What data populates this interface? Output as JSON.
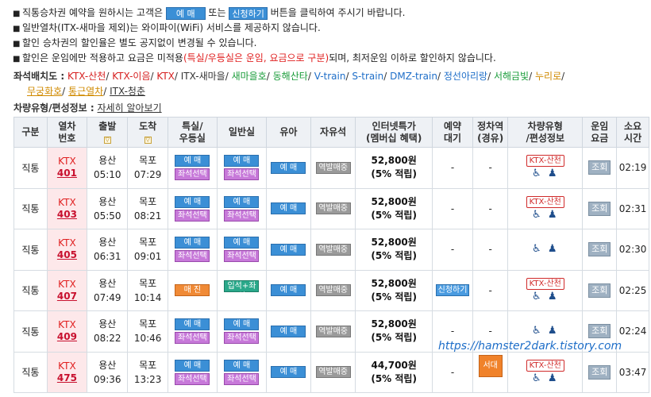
{
  "notices": [
    {
      "pre": "직통승차권 예약을 원하시는 고객은 ",
      "btn1": "예 매",
      "mid": " 또는 ",
      "btn2": "신청하기",
      "post": " 버튼을 클릭하여 주시기 바랍니다."
    },
    {
      "text": "일반열차(ITX-새마을 제외)는 와이파이(WiFi) 서비스를 제공하지 않습니다."
    },
    {
      "text": "할인 승차권의 할인율은 별도 공지없이 변경될 수 있습니다."
    },
    {
      "pre": "할인은 운임에만 적용하고 요금은 미적용",
      "red": "(특실/우등실은 운임, 요금으로 구분)",
      "post": "되며, 최저운임 이하로 할인하지 않습니다."
    }
  ],
  "seatmap": {
    "label": "좌석배치도 :",
    "items": [
      {
        "text": "KTX-산천",
        "color": "#d62020"
      },
      {
        "text": "KTX-이음",
        "color": "#d62020"
      },
      {
        "text": "KTX",
        "color": "#d62020"
      },
      {
        "text": "ITX-새마을",
        "color": "#333333"
      },
      {
        "text": "새마을호",
        "color": "#1a9c3a"
      },
      {
        "text": "동해산타",
        "color": "#1a9c3a"
      },
      {
        "text": "V-train",
        "color": "#1e6ec8"
      },
      {
        "text": "S-train",
        "color": "#1e6ec8"
      },
      {
        "text": "DMZ-train",
        "color": "#1e6ec8"
      },
      {
        "text": "정선아리랑",
        "color": "#1e6ec8"
      },
      {
        "text": "서해금빛",
        "color": "#1a9c3a"
      },
      {
        "text": "누리로",
        "color": "#d08a00"
      }
    ],
    "items2": [
      {
        "text": "무궁화호",
        "color": "#d08a00"
      },
      {
        "text": "통근열차",
        "color": "#d08a00"
      },
      {
        "text": "ITX-청춘",
        "color": "#333333"
      }
    ]
  },
  "vehicle": {
    "label": "차량유형/편성정보 :",
    "link": "자세히 알아보기"
  },
  "headers": {
    "type": "구분",
    "train": [
      "열차",
      "번호"
    ],
    "depart": "출발",
    "arrive": "도착",
    "special": [
      "특실/",
      "우등실"
    ],
    "general": "일반실",
    "child": "유아",
    "standing": "자유석",
    "fare": [
      "인터넷특가",
      "(멤버십 혜택)"
    ],
    "wait": [
      "예약",
      "대기"
    ],
    "stop": [
      "정차역",
      "(경유)"
    ],
    "vtype": [
      "차량유형",
      "/편성정보"
    ],
    "price": [
      "운임",
      "요금"
    ],
    "dur": [
      "소요",
      "시간"
    ],
    "sort_icon": "▽"
  },
  "labels": {
    "reserve": "예 매",
    "seatsel": "좌석선택",
    "soldout": "매 진",
    "standseat": "입석+좌석",
    "station_sale": "역발매중",
    "apply": "신청하기",
    "lookup": "조회",
    "sancheon": "KTX-산천",
    "dash": "-",
    "stopover": "서대전"
  },
  "rows": [
    {
      "type": "직통",
      "ktx": "KTX",
      "no": "401",
      "from": "용산",
      "dep": "05:10",
      "to": "목포",
      "arr": "07:29",
      "special": "reserve",
      "general": "reserve",
      "fare": "52,800원",
      "pts": "(5% 적립)",
      "wait": "dash",
      "stop": "dash",
      "sancheon": true,
      "dur": "02:19"
    },
    {
      "type": "직통",
      "ktx": "KTX",
      "no": "403",
      "from": "용산",
      "dep": "05:50",
      "to": "목포",
      "arr": "08:21",
      "special": "reserve",
      "general": "reserve",
      "fare": "52,800원",
      "pts": "(5% 적립)",
      "wait": "dash",
      "stop": "dash",
      "sancheon": true,
      "dur": "02:31"
    },
    {
      "type": "직통",
      "ktx": "KTX",
      "no": "405",
      "from": "용산",
      "dep": "06:31",
      "to": "목포",
      "arr": "09:01",
      "special": "reserve",
      "general": "reserve",
      "fare": "52,800원",
      "pts": "(5% 적립)",
      "wait": "dash",
      "stop": "dash",
      "sancheon": false,
      "dur": "02:30"
    },
    {
      "type": "직통",
      "ktx": "KTX",
      "no": "407",
      "from": "용산",
      "dep": "07:49",
      "to": "목포",
      "arr": "10:14",
      "special": "soldout",
      "general": "standseat",
      "fare": "52,800원",
      "pts": "(5% 적립)",
      "wait": "apply",
      "stop": "dash",
      "sancheon": true,
      "dur": "02:25"
    },
    {
      "type": "직통",
      "ktx": "KTX",
      "no": "409",
      "from": "용산",
      "dep": "08:22",
      "to": "목포",
      "arr": "10:46",
      "special": "reserve",
      "general": "reserve",
      "fare": "52,800원",
      "pts": "(5% 적립)",
      "wait": "dash",
      "stop": "dash",
      "sancheon": false,
      "dur": "02:24"
    },
    {
      "type": "직통",
      "ktx": "KTX",
      "no": "475",
      "from": "용산",
      "dep": "09:36",
      "to": "목포",
      "arr": "13:23",
      "special": "reserve",
      "general": "reserve",
      "fare": "44,700원",
      "pts": "(5% 적립)",
      "wait": "dash",
      "stop": "stopover",
      "sancheon": true,
      "dur": "03:47"
    }
  ],
  "watermark": "https://hamster2dark.tistory.com"
}
